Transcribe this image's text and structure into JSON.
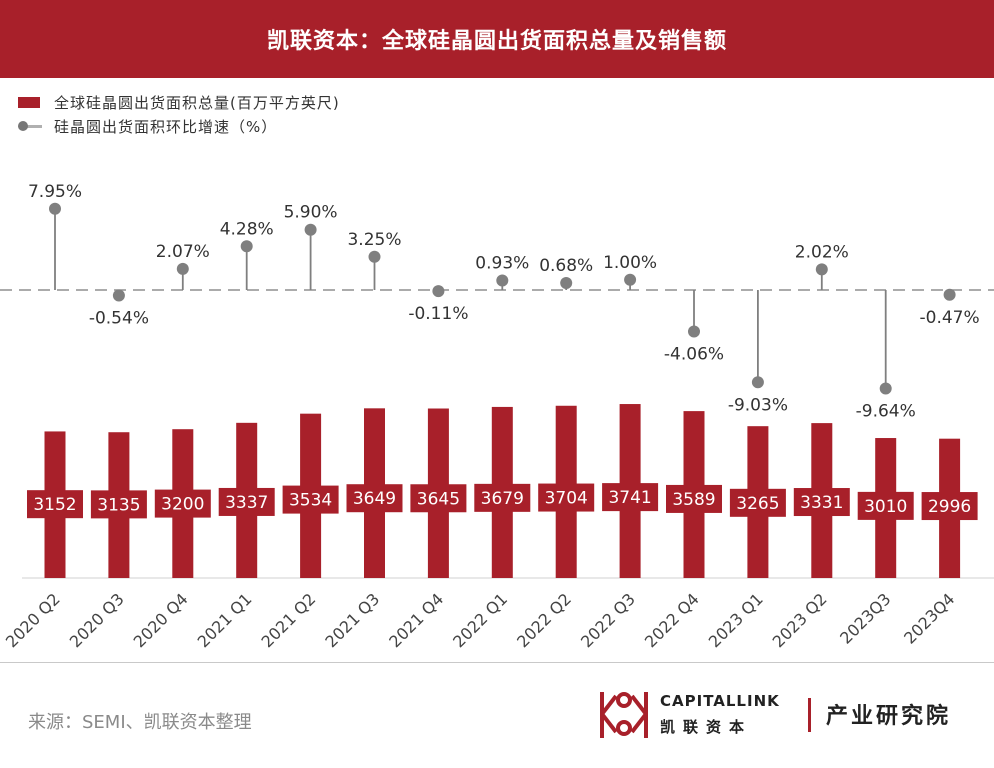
{
  "header": {
    "title": "凯联资本：全球硅晶圆出货面积总量及销售额"
  },
  "legend": {
    "bar_label": "全球硅晶圆出货面积总量(百万平方英尺)",
    "line_label": "硅晶圆出货面积环比增速（%）"
  },
  "colors": {
    "bar": "#a8202a",
    "marker": "#7f7f7f",
    "baseline": "#8f8f8f"
  },
  "chart_data": {
    "type": "bar",
    "categories": [
      "2020 Q2",
      "2020 Q3",
      "2020 Q4",
      "2021 Q1",
      "2021 Q2",
      "2021 Q3",
      "2021 Q4",
      "2022 Q1",
      "2022 Q2",
      "2022 Q3",
      "2022 Q4",
      "2023 Q1",
      "2023 Q2",
      "2023Q3",
      "2023Q4"
    ],
    "series": [
      {
        "name": "全球硅晶圆出货面积总量(百万平方英尺)",
        "type": "bar",
        "values": [
          3152,
          3135,
          3200,
          3337,
          3534,
          3649,
          3645,
          3679,
          3704,
          3741,
          3589,
          3265,
          3331,
          3010,
          2996
        ],
        "labels": [
          "3152",
          "3135",
          "3200",
          "3337",
          "3534",
          "3649",
          "3645",
          "3679",
          "3704",
          "3741",
          "3589",
          "3265",
          "3331",
          "3010",
          "2996"
        ]
      },
      {
        "name": "硅晶圆出货面积环比增速（%）",
        "type": "lollipop",
        "values": [
          7.95,
          -0.54,
          2.07,
          4.28,
          5.9,
          3.25,
          -0.11,
          0.93,
          0.68,
          1.0,
          -4.06,
          -9.03,
          2.02,
          -9.64,
          -0.47
        ],
        "labels": [
          "7.95%",
          "-0.54%",
          "2.07%",
          "4.28%",
          "5.90%",
          "3.25%",
          "-0.11%",
          "0.93%",
          "0.68%",
          "1.00%",
          "-4.06%",
          "-9.03%",
          "2.02%",
          "-9.64%",
          "-0.47%"
        ]
      }
    ],
    "bar_ylim": [
      0,
      4800
    ],
    "growth_ylim": [
      -12,
      10
    ],
    "legend_position": "top-left",
    "grid": false
  },
  "footer": {
    "source": "来源：SEMI、凯联资本整理",
    "logo_en": "CAPITALLINK",
    "logo_cn": "凯联资本",
    "institute": "产业研究院"
  }
}
